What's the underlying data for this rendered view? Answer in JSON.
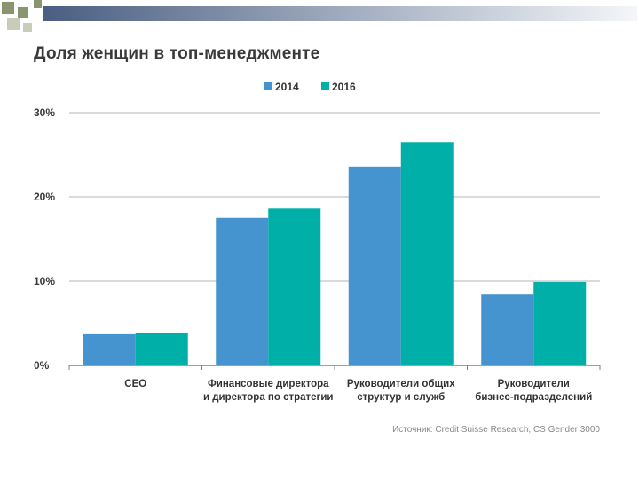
{
  "slide": {
    "title": "Доля женщин в топ-менеджменте",
    "colors": {
      "deco_square_dark": "#8a9570",
      "deco_square_light": "#c7cdb8",
      "deco_bar_start": "#4a5e82",
      "deco_bar_end": "#f4f6f9"
    }
  },
  "chart_data": {
    "type": "bar",
    "title": "",
    "xlabel": "",
    "ylabel": "",
    "categories": [
      [
        "CEO"
      ],
      [
        "Финансовые директора",
        "и директора по стратегии"
      ],
      [
        "Руководители общих",
        "структур и служб"
      ],
      [
        "Руководители",
        "бизнес-подразделений"
      ]
    ],
    "series": [
      {
        "name": "2014",
        "color": "#4593cf",
        "values": [
          3.8,
          17.5,
          23.6,
          8.4
        ]
      },
      {
        "name": "2016",
        "color": "#00b0a8",
        "values": [
          3.9,
          18.6,
          26.5,
          9.9
        ]
      }
    ],
    "ylim": [
      0,
      30
    ],
    "yticks": [
      0,
      10,
      20,
      30
    ],
    "ytick_labels": [
      "0%",
      "10%",
      "20%",
      "30%"
    ],
    "grid": true,
    "legend": "top-center",
    "source": "Источник: Credit Suisse Research, CS Gender 3000"
  }
}
